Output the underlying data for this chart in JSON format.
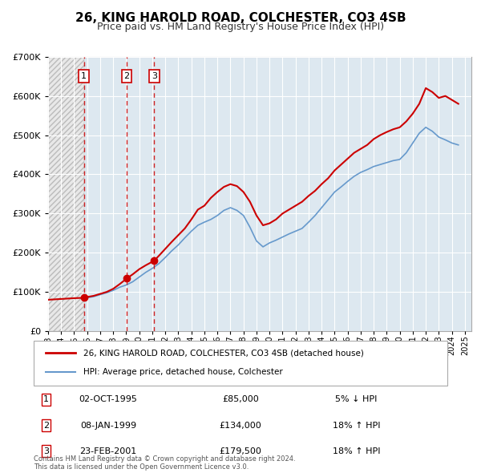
{
  "title": "26, KING HAROLD ROAD, COLCHESTER, CO3 4SB",
  "subtitle": "Price paid vs. HM Land Registry's House Price Index (HPI)",
  "legend_line1": "26, KING HAROLD ROAD, COLCHESTER, CO3 4SB (detached house)",
  "legend_line2": "HPI: Average price, detached house, Colchester",
  "footer_line1": "Contains HM Land Registry data © Crown copyright and database right 2024.",
  "footer_line2": "This data is licensed under the Open Government Licence v3.0.",
  "transactions": [
    {
      "label": "1",
      "date": "02-OCT-1995",
      "price": 85000,
      "pct": "5%",
      "dir": "↓",
      "year": 1995.75
    },
    {
      "label": "2",
      "date": "08-JAN-1999",
      "price": 134000,
      "pct": "18%",
      "dir": "↑",
      "year": 1999.03
    },
    {
      "label": "3",
      "date": "23-FEB-2001",
      "price": 179500,
      "pct": "18%",
      "dir": "↑",
      "year": 2001.14
    }
  ],
  "price_paid_color": "#cc0000",
  "hpi_color": "#6699cc",
  "hatch_color": "#cccccc",
  "dashed_line_color": "#cc0000",
  "background_plot": "#dde8f0",
  "background_hatch": "#e8e8e8",
  "ylim": [
    0,
    700000
  ],
  "yticks": [
    0,
    100000,
    200000,
    300000,
    400000,
    500000,
    600000,
    700000
  ],
  "xlim_start": 1993.0,
  "xlim_end": 2025.5,
  "hatch_end": 1995.75,
  "price_paid_x": [
    1993.0,
    1994.0,
    1994.5,
    1995.0,
    1995.75,
    1996.0,
    1996.5,
    1997.0,
    1997.5,
    1998.0,
    1998.5,
    1999.03,
    1999.5,
    2000.0,
    2000.5,
    2001.14,
    2001.5,
    2002.0,
    2002.5,
    2003.0,
    2003.5,
    2004.0,
    2004.5,
    2005.0,
    2005.5,
    2006.0,
    2006.5,
    2007.0,
    2007.5,
    2008.0,
    2008.5,
    2009.0,
    2009.5,
    2010.0,
    2010.5,
    2011.0,
    2011.5,
    2012.0,
    2012.5,
    2013.0,
    2013.5,
    2014.0,
    2014.5,
    2015.0,
    2015.5,
    2016.0,
    2016.5,
    2017.0,
    2017.5,
    2018.0,
    2018.5,
    2019.0,
    2019.5,
    2020.0,
    2020.5,
    2021.0,
    2021.5,
    2022.0,
    2022.5,
    2023.0,
    2023.5,
    2024.0,
    2024.5
  ],
  "price_paid_y": [
    80000,
    82000,
    83000,
    84000,
    85000,
    87000,
    90000,
    95000,
    100000,
    108000,
    120000,
    134000,
    145000,
    158000,
    168000,
    179500,
    192000,
    210000,
    228000,
    245000,
    262000,
    285000,
    310000,
    320000,
    340000,
    355000,
    368000,
    375000,
    370000,
    355000,
    330000,
    295000,
    270000,
    275000,
    285000,
    300000,
    310000,
    320000,
    330000,
    345000,
    358000,
    375000,
    390000,
    410000,
    425000,
    440000,
    455000,
    465000,
    475000,
    490000,
    500000,
    508000,
    515000,
    520000,
    535000,
    555000,
    580000,
    620000,
    610000,
    595000,
    600000,
    590000,
    580000
  ],
  "hpi_x": [
    1995.75,
    1996.0,
    1996.5,
    1997.0,
    1997.5,
    1998.0,
    1998.5,
    1999.03,
    1999.5,
    2000.0,
    2000.5,
    2001.0,
    2001.5,
    2002.0,
    2002.5,
    2003.0,
    2003.5,
    2004.0,
    2004.5,
    2005.0,
    2005.5,
    2006.0,
    2006.5,
    2007.0,
    2007.5,
    2008.0,
    2008.5,
    2009.0,
    2009.5,
    2010.0,
    2010.5,
    2011.0,
    2011.5,
    2012.0,
    2012.5,
    2013.0,
    2013.5,
    2014.0,
    2014.5,
    2015.0,
    2015.5,
    2016.0,
    2016.5,
    2017.0,
    2017.5,
    2018.0,
    2018.5,
    2019.0,
    2019.5,
    2020.0,
    2020.5,
    2021.0,
    2021.5,
    2022.0,
    2022.5,
    2023.0,
    2023.5,
    2024.0,
    2024.5
  ],
  "hpi_y": [
    82000,
    85000,
    88000,
    93000,
    98000,
    104000,
    112000,
    118000,
    126000,
    138000,
    150000,
    160000,
    172000,
    188000,
    205000,
    220000,
    238000,
    255000,
    270000,
    278000,
    285000,
    295000,
    308000,
    315000,
    308000,
    295000,
    265000,
    230000,
    215000,
    225000,
    232000,
    240000,
    248000,
    255000,
    262000,
    278000,
    295000,
    315000,
    335000,
    355000,
    368000,
    382000,
    395000,
    405000,
    412000,
    420000,
    425000,
    430000,
    435000,
    438000,
    455000,
    480000,
    505000,
    520000,
    510000,
    495000,
    488000,
    480000,
    475000
  ]
}
